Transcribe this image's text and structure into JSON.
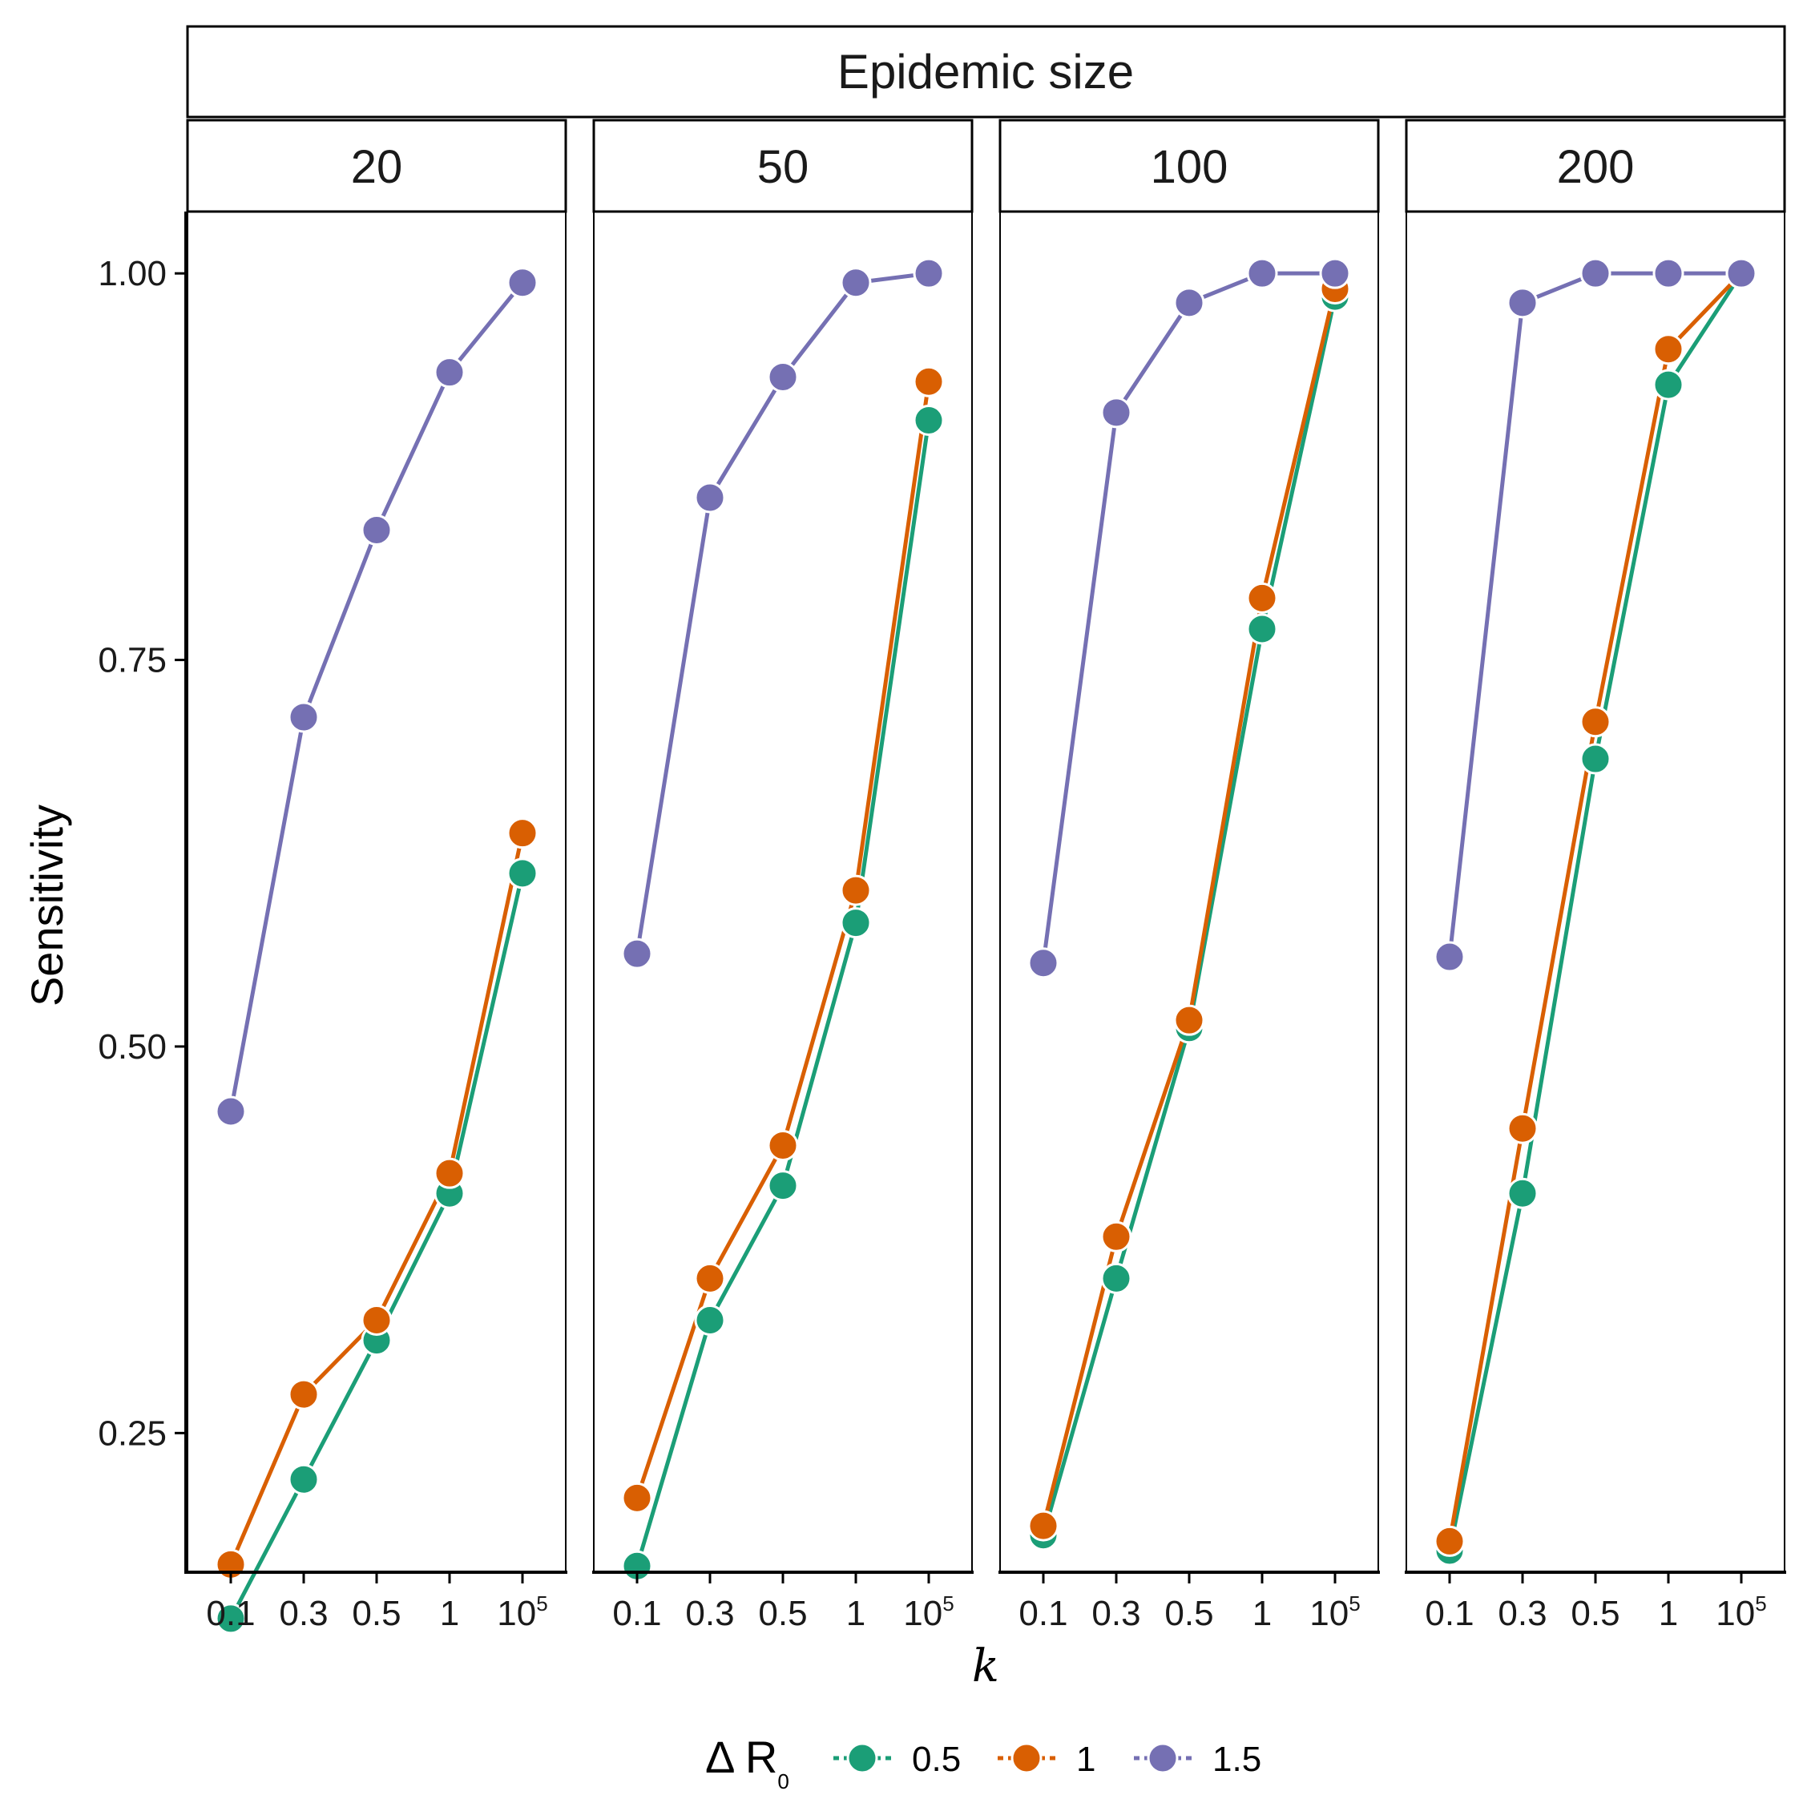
{
  "chart_data": {
    "type": "line",
    "facet_title": "Epidemic size",
    "ylabel": "Sensitivity",
    "xlabel": "k",
    "ylim": [
      0.16,
      1.04
    ],
    "y_ticks": [
      0.25,
      0.5,
      0.75,
      1.0
    ],
    "y_tick_labels": [
      "0.25",
      "0.50",
      "0.75",
      "1.00"
    ],
    "x_categories": [
      "0.1",
      "0.3",
      "0.5",
      "1",
      "10^5"
    ],
    "x_tick_labels": [
      {
        "base": "0.1",
        "sup": ""
      },
      {
        "base": "0.3",
        "sup": ""
      },
      {
        "base": "0.5",
        "sup": ""
      },
      {
        "base": "1",
        "sup": ""
      },
      {
        "base": "10",
        "sup": "5"
      }
    ],
    "legend": {
      "title": "Δ R",
      "title_sub": "0",
      "position": "bottom",
      "entries": [
        {
          "label": "0.5",
          "color": "#1b9e77"
        },
        {
          "label": "1",
          "color": "#d95f02"
        },
        {
          "label": "1.5",
          "color": "#7570b3"
        }
      ]
    },
    "panels": [
      {
        "label": "20",
        "series": [
          {
            "name": "0.5",
            "color": "#1b9e77",
            "values": [
              0.13,
              0.22,
              0.31,
              0.405,
              0.612
            ]
          },
          {
            "name": "1",
            "color": "#d95f02",
            "values": [
              0.165,
              0.275,
              0.323,
              0.418,
              0.638
            ]
          },
          {
            "name": "1.5",
            "color": "#7570b3",
            "values": [
              0.458,
              0.713,
              0.834,
              0.936,
              0.994
            ]
          }
        ]
      },
      {
        "label": "50",
        "series": [
          {
            "name": "0.5",
            "color": "#1b9e77",
            "values": [
              0.164,
              0.323,
              0.41,
              0.58,
              0.905
            ]
          },
          {
            "name": "1",
            "color": "#d95f02",
            "values": [
              0.208,
              0.35,
              0.436,
              0.601,
              0.93
            ]
          },
          {
            "name": "1.5",
            "color": "#7570b3",
            "values": [
              0.56,
              0.855,
              0.933,
              0.994,
              1.0
            ]
          }
        ]
      },
      {
        "label": "100",
        "series": [
          {
            "name": "0.5",
            "color": "#1b9e77",
            "values": [
              0.184,
              0.35,
              0.512,
              0.77,
              0.985
            ]
          },
          {
            "name": "1",
            "color": "#d95f02",
            "values": [
              0.19,
              0.377,
              0.517,
              0.79,
              0.99
            ]
          },
          {
            "name": "1.5",
            "color": "#7570b3",
            "values": [
              0.554,
              0.91,
              0.981,
              1.0,
              1.0
            ]
          }
        ]
      },
      {
        "label": "200",
        "series": [
          {
            "name": "0.5",
            "color": "#1b9e77",
            "values": [
              0.174,
              0.405,
              0.686,
              0.928,
              1.0
            ]
          },
          {
            "name": "1",
            "color": "#d95f02",
            "values": [
              0.18,
              0.447,
              0.71,
              0.951,
              1.0
            ]
          },
          {
            "name": "1.5",
            "color": "#7570b3",
            "values": [
              0.558,
              0.981,
              1.0,
              1.0,
              1.0
            ]
          }
        ]
      }
    ]
  }
}
